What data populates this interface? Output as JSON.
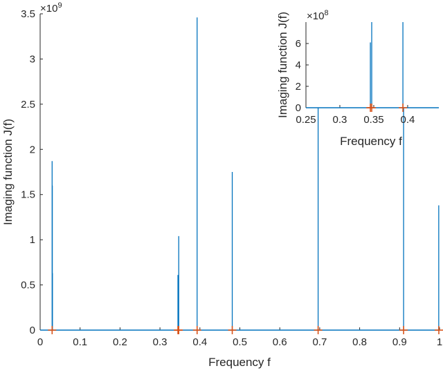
{
  "chart_data": [
    {
      "type": "line",
      "role": "main",
      "xlabel": "Frequency f",
      "ylabel": "Imaging function J(f)",
      "y_exponent_label": "×10",
      "y_exponent": "9",
      "xlim": [
        0,
        1
      ],
      "ylim": [
        0,
        3500000000.0
      ],
      "x_ticks": [
        "0",
        "0.1",
        "0.2",
        "0.3",
        "0.4",
        "0.5",
        "0.6",
        "0.7",
        "0.8",
        "0.9",
        "1"
      ],
      "y_ticks": [
        "0",
        "0.5",
        "1",
        "1.5",
        "2",
        "2.5",
        "3",
        "3.5"
      ],
      "series_color": "#0072BD",
      "marker_color": "#D95319",
      "peaks": [
        {
          "x": 0.03,
          "y": 1870000000.0
        },
        {
          "x": 0.0305,
          "y": 1600000000.0
        },
        {
          "x": 0.0308,
          "y": 630000000.0
        },
        {
          "x": 0.345,
          "y": 610000000.0
        },
        {
          "x": 0.347,
          "y": 1040000000.0
        },
        {
          "x": 0.393,
          "y": 3460000000.0
        },
        {
          "x": 0.481,
          "y": 1750000000.0
        },
        {
          "x": 0.696,
          "y": 3000000000.0
        },
        {
          "x": 0.91,
          "y": 3000000000.0
        },
        {
          "x": 0.998,
          "y": 1380000000.0
        }
      ],
      "markers_x": [
        0.03,
        0.345,
        0.347,
        0.393,
        0.481,
        0.696,
        0.91,
        1.0
      ]
    },
    {
      "type": "line",
      "role": "inset",
      "xlabel": "Frequency f",
      "ylabel": "Imaging function J(f)",
      "y_exponent_label": "×10",
      "y_exponent": "8",
      "xlim": [
        0.25,
        0.446
      ],
      "ylim": [
        0,
        800000000.0
      ],
      "x_ticks": [
        "0.25",
        "0.3",
        "0.35",
        "0.4"
      ],
      "y_ticks": [
        "0",
        "2",
        "4",
        "6"
      ],
      "peaks": [
        {
          "x": 0.345,
          "y": 610000000.0
        },
        {
          "x": 0.347,
          "y": 800000000.0
        },
        {
          "x": 0.393,
          "y": 800000000.0
        }
      ],
      "markers_x": [
        0.345,
        0.347,
        0.393
      ]
    }
  ]
}
